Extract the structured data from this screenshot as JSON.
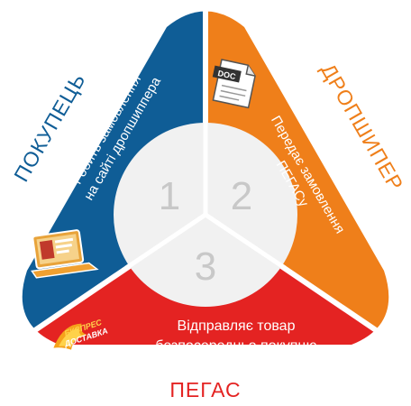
{
  "colors": {
    "buyer": "#0f5d96",
    "dropshipper": "#ef7f1a",
    "pegas": "#e42322",
    "divider": "#ffffff",
    "center": "#f1f1f1",
    "number": "#c8c8c8"
  },
  "segments": {
    "buyer": {
      "title": "ПОКУПЕЦЬ",
      "line1": "Робить замовлення",
      "line2": "на сайті дропшиппера",
      "number": "1",
      "icon": "laptop-icon"
    },
    "dropshipper": {
      "title": "ДРОПШИПЕР",
      "line1": "Передає замовлення",
      "line2": "ПЕГАСу",
      "number": "2",
      "icon": "doc-icon",
      "icon_text": "DOC"
    },
    "pegas": {
      "title": "ПЕГАС",
      "line1": "Відправляє товар",
      "line2": "безпосередньо покупцю",
      "number": "3",
      "icon": "express-delivery-icon",
      "badge_line1": "ЕКСПРЕС",
      "badge_line2": "ДОСТАВКА"
    }
  }
}
